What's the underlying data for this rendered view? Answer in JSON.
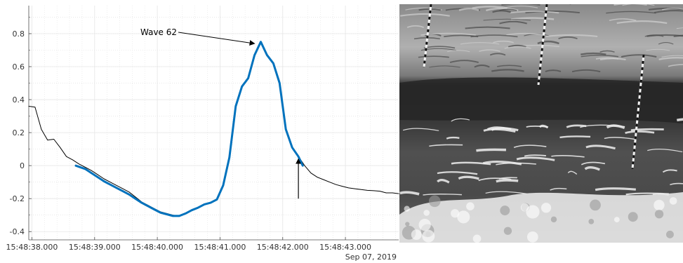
{
  "chart_data": {
    "type": "line",
    "title": "",
    "xlabel": "",
    "ylabel": "",
    "x_date_label": "Sep 07, 2019",
    "xlim": [
      "15:48:37.950",
      "15:48:43.850"
    ],
    "ylim": [
      -0.45,
      0.97
    ],
    "grid": true,
    "minor_grid": true,
    "legend": "none",
    "x_ticks": [
      "15:48:38.000",
      "15:48:39.000",
      "15:48:40.000",
      "15:48:41.000",
      "15:48:42.000",
      "15:48:43.000"
    ],
    "y_ticks": [
      -0.4,
      -0.2,
      0,
      0.2,
      0.4,
      0.6,
      0.8
    ],
    "series": [
      {
        "color": "#000000",
        "x": [
          "15:48:37.950",
          "15:48:38.050",
          "15:48:38.150",
          "15:48:38.250",
          "15:48:38.350",
          "15:48:38.450",
          "15:48:38.550",
          "15:48:38.650",
          "15:48:38.750",
          "15:48:38.850",
          "15:48:38.950",
          "15:48:39.050",
          "15:48:39.150",
          "15:48:39.250",
          "15:48:39.350",
          "15:48:39.450",
          "15:48:39.550",
          "15:48:39.650",
          "15:48:39.750",
          "15:48:39.850",
          "15:48:39.950",
          "15:48:40.050",
          "15:48:40.150",
          "15:48:40.250",
          "15:48:40.350",
          "15:48:40.450",
          "15:48:40.550",
          "15:48:40.650",
          "15:48:40.750",
          "15:48:40.850",
          "15:48:40.950",
          "15:48:41.050",
          "15:48:41.150",
          "15:48:41.250",
          "15:48:41.350",
          "15:48:41.450",
          "15:48:41.550",
          "15:48:41.650",
          "15:48:41.750",
          "15:48:41.850",
          "15:48:41.950",
          "15:48:42.050",
          "15:48:42.150",
          "15:48:42.250",
          "15:48:42.350",
          "15:48:42.450",
          "15:48:42.550",
          "15:48:42.650",
          "15:48:42.750",
          "15:48:42.850",
          "15:48:42.950",
          "15:48:43.050",
          "15:48:43.150",
          "15:48:43.250",
          "15:48:43.350",
          "15:48:43.450",
          "15:48:43.550",
          "15:48:43.650",
          "15:48:43.750",
          "15:48:43.850"
        ],
        "y": [
          0.36,
          0.355,
          0.22,
          0.155,
          0.16,
          0.11,
          0.055,
          0.035,
          0.01,
          -0.01,
          -0.03,
          -0.055,
          -0.08,
          -0.1,
          -0.12,
          -0.14,
          -0.16,
          -0.19,
          -0.22,
          -0.24,
          -0.26,
          -0.28,
          -0.29,
          -0.3,
          -0.305,
          -0.29,
          -0.27,
          -0.255,
          -0.235,
          -0.225,
          -0.205,
          -0.12,
          0.05,
          0.36,
          0.48,
          0.53,
          0.67,
          0.75,
          0.67,
          0.62,
          0.5,
          0.22,
          0.11,
          0.055,
          0.0,
          -0.045,
          -0.07,
          -0.085,
          -0.1,
          -0.115,
          -0.125,
          -0.135,
          -0.14,
          -0.145,
          -0.15,
          -0.152,
          -0.155,
          -0.165,
          -0.165,
          -0.17
        ],
        "line_width": 1
      },
      {
        "color": "#0072BD",
        "x": [
          "15:48:38.700",
          "15:48:38.850",
          "15:48:38.950",
          "15:48:39.050",
          "15:48:39.150",
          "15:48:39.250",
          "15:48:39.350",
          "15:48:39.450",
          "15:48:39.550",
          "15:48:39.650",
          "15:48:39.750",
          "15:48:39.850",
          "15:48:39.950",
          "15:48:40.050",
          "15:48:40.150",
          "15:48:40.250",
          "15:48:40.350",
          "15:48:40.450",
          "15:48:40.550",
          "15:48:40.650",
          "15:48:40.750",
          "15:48:40.850",
          "15:48:40.950",
          "15:48:41.050",
          "15:48:41.150",
          "15:48:41.250",
          "15:48:41.350",
          "15:48:41.450",
          "15:48:41.550",
          "15:48:41.650",
          "15:48:41.750",
          "15:48:41.850",
          "15:48:41.950",
          "15:48:42.050",
          "15:48:42.150",
          "15:48:42.250",
          "15:48:42.320"
        ],
        "y": [
          0.0,
          -0.02,
          -0.045,
          -0.07,
          -0.095,
          -0.115,
          -0.135,
          -0.155,
          -0.175,
          -0.2,
          -0.225,
          -0.245,
          -0.265,
          -0.285,
          -0.295,
          -0.305,
          -0.305,
          -0.29,
          -0.27,
          -0.255,
          -0.235,
          -0.225,
          -0.205,
          -0.12,
          0.05,
          0.36,
          0.48,
          0.53,
          0.67,
          0.75,
          0.67,
          0.62,
          0.5,
          0.22,
          0.11,
          0.055,
          0.0
        ],
        "line_width": 3
      }
    ],
    "annotations": [
      {
        "type": "text-arrow",
        "text": "Wave 62",
        "arrow_to_x": "15:48:41.550",
        "arrow_to_y": 0.74
      },
      {
        "type": "arrow",
        "from_x": "15:48:42.250",
        "from_y": -0.2,
        "to_x": "15:48:42.250",
        "to_y": 0.04
      }
    ]
  },
  "photo": {
    "description_icon": "wave-photo",
    "colors": {
      "dark": "#2b2b2b",
      "mid": "#6a6a6a",
      "light": "#bdbdbd",
      "foam": "#f2f2f2"
    }
  }
}
